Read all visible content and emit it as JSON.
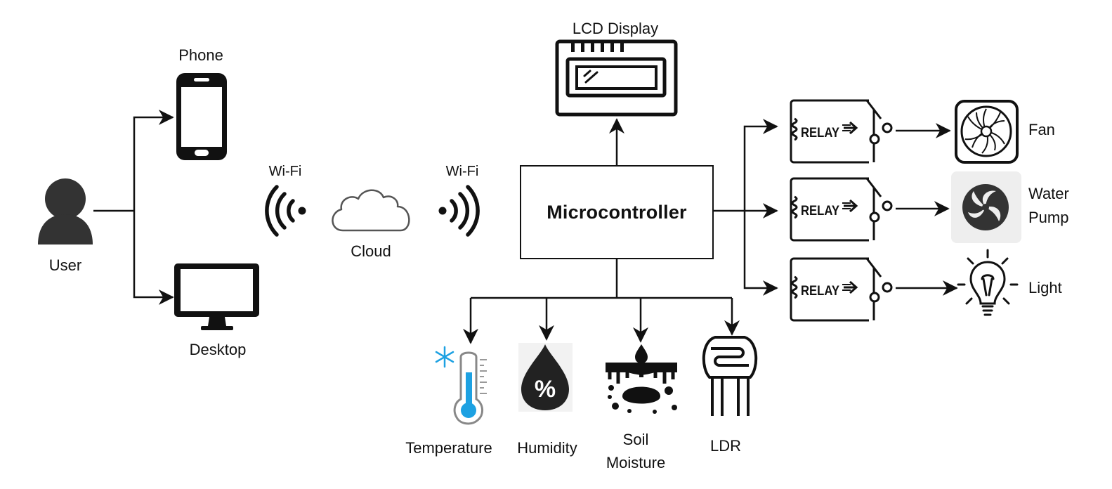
{
  "user": {
    "label": "User"
  },
  "phone": {
    "label": "Phone"
  },
  "desktop": {
    "label": "Desktop"
  },
  "wifi_left": {
    "label": "Wi-Fi"
  },
  "wifi_right": {
    "label": "Wi-Fi"
  },
  "cloud": {
    "label": "Cloud"
  },
  "lcd": {
    "label": "LCD Display"
  },
  "microcontroller": {
    "label": "Microcontroller"
  },
  "relay_text": "RELAY",
  "outputs": [
    {
      "label": "Fan"
    },
    {
      "label_line1": "Water",
      "label_line2": "Pump"
    },
    {
      "label": "Light"
    }
  ],
  "sensors": [
    {
      "label": "Temperature"
    },
    {
      "label": "Humidity"
    },
    {
      "label_line1": "Soil",
      "label_line2": "Moisture"
    },
    {
      "label": "LDR"
    }
  ],
  "colors": {
    "line": "#111111",
    "thermo_blue": "#1da1e2",
    "pump_bg": "#eeeeee",
    "pump_icon": "#333333"
  }
}
